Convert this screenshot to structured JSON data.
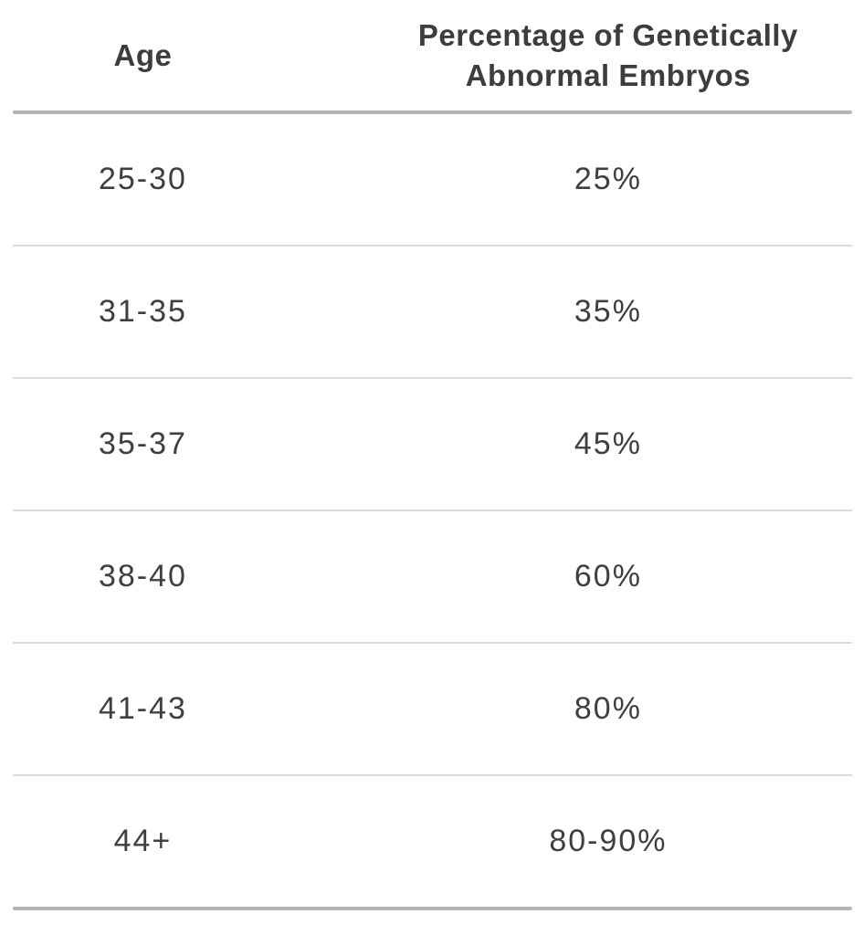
{
  "chart_data": {
    "type": "table",
    "columns": [
      "Age",
      "Percentage of Genetically Abnormal Embryos"
    ],
    "rows": [
      [
        "25-30",
        "25%"
      ],
      [
        "31-35",
        "35%"
      ],
      [
        "35-37",
        "45%"
      ],
      [
        "38-40",
        "60%"
      ],
      [
        "41-43",
        "80%"
      ],
      [
        "44+",
        "80-90%"
      ]
    ]
  },
  "table": {
    "columns": [
      {
        "label": "Age"
      },
      {
        "label": "Percentage of Genetically Abnormal Embryos"
      }
    ],
    "rows": [
      {
        "age": "25-30",
        "value": "25%"
      },
      {
        "age": "31-35",
        "value": "35%"
      },
      {
        "age": "35-37",
        "value": "45%"
      },
      {
        "age": "38-40",
        "value": "60%"
      },
      {
        "age": "41-43",
        "value": "80%"
      },
      {
        "age": "44+",
        "value": "80-90%"
      }
    ]
  },
  "colors": {
    "background": "#ffffff",
    "text": "#3d3d3d",
    "thick_rule": "#b4b4b4",
    "thin_rule": "#dcdcdc"
  }
}
